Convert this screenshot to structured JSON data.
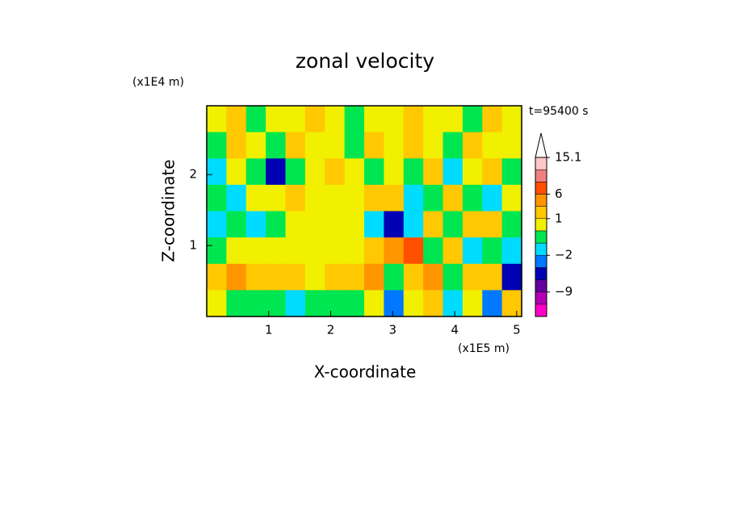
{
  "chart_data": {
    "type": "contour",
    "title": "zonal velocity",
    "x_label": "X-coordinate",
    "y_label": "Z-coordinate",
    "x_unit": "(x1E5 m)",
    "y_unit": "(x1E4 m)",
    "time_label": "t=95400 s",
    "xlim": [
      0,
      5.08
    ],
    "ylim": [
      0,
      2.97
    ],
    "xticks": [
      1,
      2,
      3,
      4,
      5
    ],
    "yticks": [
      1,
      2
    ],
    "field": [
      [
        0.5,
        2,
        -0.5,
        0.5,
        0.5,
        2,
        0.5,
        -0.5,
        0.5,
        0.5,
        2,
        0.5,
        0.5,
        -0.5,
        2,
        0.5
      ],
      [
        -0.5,
        2,
        0.5,
        -0.5,
        2,
        0.5,
        0.5,
        -0.5,
        2,
        0.5,
        2,
        0.5,
        -0.5,
        2,
        0.5,
        0.5
      ],
      [
        -1.5,
        0.5,
        -0.5,
        -5,
        -0.5,
        0.5,
        2,
        0.5,
        -0.5,
        0.5,
        -0.5,
        2,
        -1.5,
        0.5,
        2,
        -0.5
      ],
      [
        -0.5,
        -1.5,
        0.5,
        0.5,
        2,
        0.5,
        0.5,
        0.5,
        2,
        2,
        -1.5,
        -0.5,
        2,
        -0.5,
        -1.5,
        0.5
      ],
      [
        -1.5,
        -0.5,
        -1.5,
        -0.5,
        0.5,
        0.5,
        0.5,
        0.5,
        -1.5,
        -5,
        -1.5,
        2,
        -0.5,
        2,
        2,
        -0.5
      ],
      [
        -0.5,
        0.5,
        0.5,
        0.5,
        0.5,
        0.5,
        0.5,
        0.5,
        2,
        4,
        7,
        -0.5,
        2,
        -1.5,
        -0.5,
        -1.5
      ],
      [
        2,
        4,
        2,
        2,
        2,
        0.5,
        2,
        2,
        4,
        -0.5,
        2,
        4,
        -0.5,
        2,
        2,
        -5
      ],
      [
        0.5,
        -0.5,
        -0.5,
        -0.5,
        -1.5,
        -0.5,
        -0.5,
        -0.5,
        0.5,
        -2.5,
        0.5,
        2,
        -1.5,
        0.5,
        -2.5,
        2
      ]
    ],
    "colorbar": {
      "levels": [
        -15,
        -12,
        -9,
        -6,
        -3,
        -2,
        -1,
        0,
        1,
        3,
        6,
        9,
        12,
        15.1
      ],
      "colors": [
        "#ff00c8",
        "#b400b4",
        "#6400a0",
        "#0000b4",
        "#0078ff",
        "#00dcff",
        "#00e650",
        "#f0f000",
        "#ffc800",
        "#ff9600",
        "#ff5000",
        "#f08080",
        "#ffc8c8"
      ],
      "ticks": [
        {
          "value": -9,
          "label": "−9"
        },
        {
          "value": -2,
          "label": "−2"
        },
        1,
        6,
        15.1
      ]
    }
  }
}
